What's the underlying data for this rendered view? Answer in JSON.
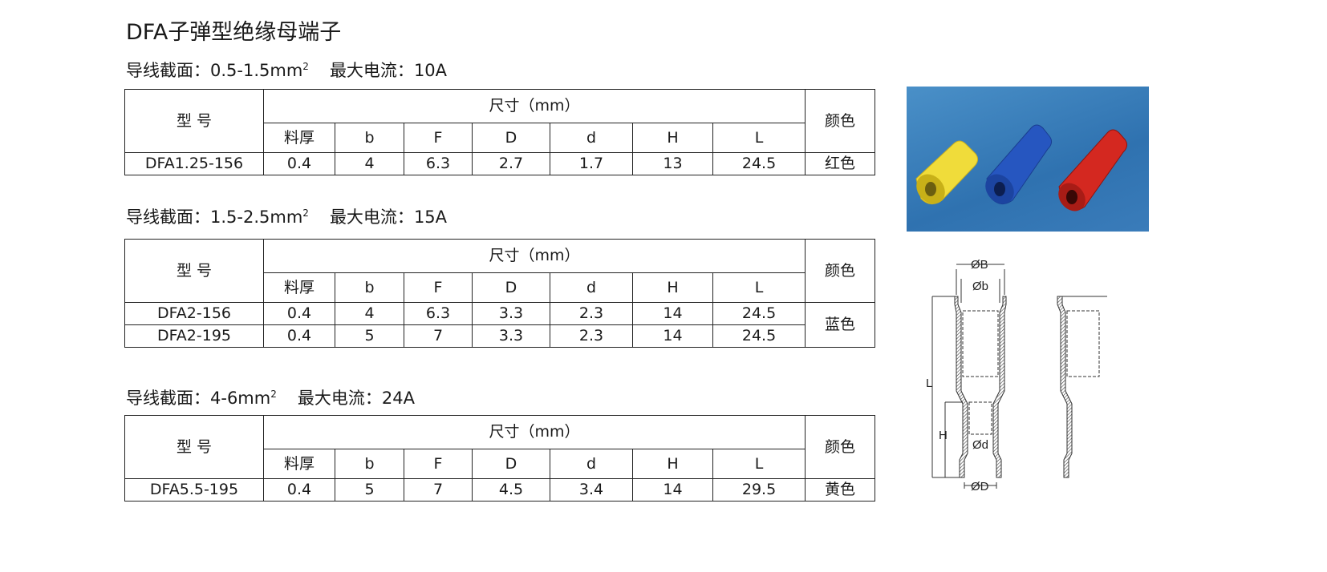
{
  "title": "DFA子弹型绝缘母端子",
  "sections": [
    {
      "wire_label": "导线截面：",
      "wire": "0.5-1.5mm",
      "sup": "2",
      "current_label": "最大电流：",
      "current": "10A",
      "header": {
        "model": "型 号",
        "size": "尺寸（mm）",
        "color": "颜色",
        "cols": [
          "料厚",
          "b",
          "F",
          "D",
          "d",
          "H",
          "L"
        ]
      },
      "rows": [
        {
          "model": "DFA1.25-156",
          "vals": [
            "0.4",
            "4",
            "6.3",
            "2.7",
            "1.7",
            "13",
            "24.5"
          ]
        }
      ],
      "color_value": "红色"
    },
    {
      "wire_label": "导线截面：",
      "wire": "1.5-2.5mm",
      "sup": "2",
      "current_label": "最大电流：",
      "current": "15A",
      "header": {
        "model": "型 号",
        "size": "尺寸（mm）",
        "color": "颜色",
        "cols": [
          "料厚",
          "b",
          "F",
          "D",
          "d",
          "H",
          "L"
        ]
      },
      "rows": [
        {
          "model": "DFA2-156",
          "vals": [
            "0.4",
            "4",
            "6.3",
            "3.3",
            "2.3",
            "14",
            "24.5"
          ]
        },
        {
          "model": "DFA2-195",
          "vals": [
            "0.4",
            "5",
            "7",
            "3.3",
            "2.3",
            "14",
            "24.5"
          ]
        }
      ],
      "color_value": "蓝色"
    },
    {
      "wire_label": "导线截面：",
      "wire": "4-6mm",
      "sup": "2",
      "current_label": "最大电流：",
      "current": "24A",
      "header": {
        "model": "型 号",
        "size": "尺寸（mm）",
        "color": "颜色",
        "cols": [
          "料厚",
          "b",
          "F",
          "D",
          "d",
          "H",
          "L"
        ]
      },
      "rows": [
        {
          "model": "DFA5.5-195",
          "vals": [
            "0.4",
            "5",
            "7",
            "4.5",
            "3.4",
            "14",
            "29.5"
          ]
        }
      ],
      "color_value": "黄色"
    }
  ],
  "diagram": {
    "B": "ØB",
    "b": "Øb",
    "L": "L",
    "H": "H",
    "d": "Ød",
    "D": "ØD"
  },
  "photo": {
    "colors": [
      "#f2e23a",
      "#2b5fc8",
      "#d42a22"
    ]
  }
}
